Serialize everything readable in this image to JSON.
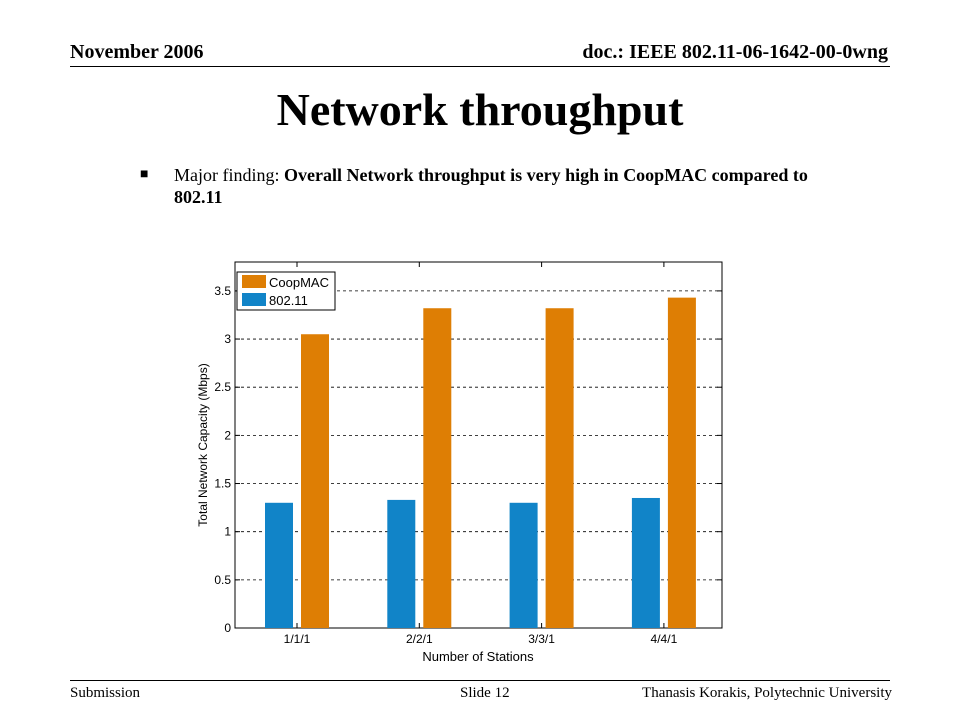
{
  "header": {
    "date": "November 2006",
    "doc_id": "doc.: IEEE 802.11-06-1642-00-0wng"
  },
  "slide_title": "Network throughput",
  "bullet": {
    "lead": "Major finding: ",
    "emphasis": "Overall Network throughput is very high in CoopMAC compared to 802.11"
  },
  "chart_data": {
    "type": "bar",
    "categories": [
      "1/1/1",
      "2/2/1",
      "3/3/1",
      "4/4/1"
    ],
    "series": [
      {
        "name": "802.11",
        "values": [
          1.3,
          1.33,
          1.3,
          1.35
        ],
        "color": "#1184c8"
      },
      {
        "name": "CoopMAC",
        "values": [
          3.05,
          3.32,
          3.32,
          3.43
        ],
        "color": "#de7e04"
      }
    ],
    "legend_order": [
      "CoopMAC",
      "802.11"
    ],
    "xlabel": "Number of Stations",
    "ylabel": "Total Network Capacity (Mbps)",
    "ylim": [
      0,
      3.5
    ],
    "yticks": [
      "0",
      "0.5",
      "1",
      "1.5",
      "2",
      "2.5",
      "3",
      "3.5"
    ],
    "grid": true,
    "legend_position": "top-left"
  },
  "footer": {
    "left": "Submission",
    "center": "Slide 12",
    "right": "Thanasis Korakis, Polytechnic University"
  }
}
